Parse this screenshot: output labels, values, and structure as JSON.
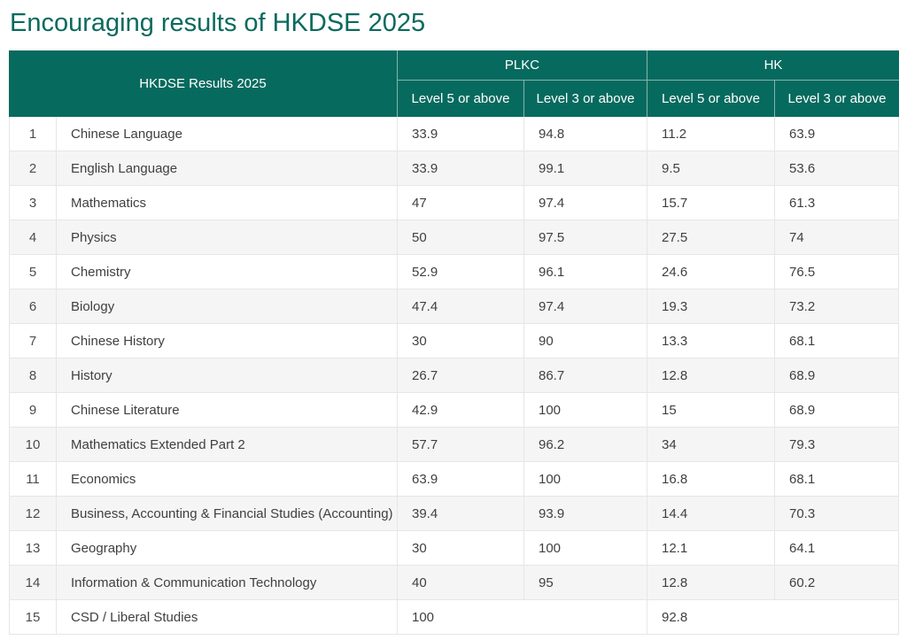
{
  "page": {
    "title": "Encouraging results of HKDSE 2025"
  },
  "table": {
    "header": {
      "corner": "HKDSE Results 2025",
      "group_plkc": "PLKC",
      "group_hk": "HK",
      "sub": [
        "Level 5 or above",
        "Level 3 or above",
        "Level 5 or above",
        "Level 3 or above"
      ]
    },
    "rows": [
      {
        "num": "1",
        "subject": "Chinese Language",
        "values": [
          "33.9",
          "94.8",
          "11.2",
          "63.9"
        ]
      },
      {
        "num": "2",
        "subject": "English Language",
        "values": [
          "33.9",
          "99.1",
          "9.5",
          "53.6"
        ]
      },
      {
        "num": "3",
        "subject": "Mathematics",
        "values": [
          "47",
          "97.4",
          "15.7",
          "61.3"
        ]
      },
      {
        "num": "4",
        "subject": "Physics",
        "values": [
          "50",
          "97.5",
          "27.5",
          "74"
        ]
      },
      {
        "num": "5",
        "subject": "Chemistry",
        "values": [
          "52.9",
          "96.1",
          "24.6",
          "76.5"
        ]
      },
      {
        "num": "6",
        "subject": "Biology",
        "values": [
          "47.4",
          "97.4",
          "19.3",
          "73.2"
        ]
      },
      {
        "num": "7",
        "subject": "Chinese History",
        "values": [
          "30",
          "90",
          "13.3",
          "68.1"
        ]
      },
      {
        "num": "8",
        "subject": "History",
        "values": [
          "26.7",
          "86.7",
          "12.8",
          "68.9"
        ]
      },
      {
        "num": "9",
        "subject": "Chinese Literature",
        "values": [
          "42.9",
          "100",
          "15",
          "68.9"
        ]
      },
      {
        "num": "10",
        "subject": "Mathematics Extended Part 2",
        "values": [
          "57.7",
          "96.2",
          "34",
          "79.3"
        ]
      },
      {
        "num": "11",
        "subject": "Economics",
        "values": [
          "63.9",
          "100",
          "16.8",
          "68.1"
        ]
      },
      {
        "num": "12",
        "subject": "Business, Accounting & Financial Studies (Accounting)",
        "values": [
          "39.4",
          "93.9",
          "14.4",
          "70.3"
        ]
      },
      {
        "num": "13",
        "subject": "Geography",
        "values": [
          "30",
          "100",
          "12.1",
          "64.1"
        ]
      },
      {
        "num": "14",
        "subject": "Information & Communication Technology",
        "values": [
          "40",
          "95",
          "12.8",
          "60.2"
        ]
      }
    ],
    "last_row": {
      "num": "15",
      "subject": "CSD / Liberal Studies",
      "plkc_merged": "100",
      "hk_merged": "92.8"
    },
    "colors": {
      "header_bg": "#076a5e",
      "title_text": "#0a6a5e",
      "stripe": "#f5f5f5",
      "border": "#e6e6e6"
    }
  }
}
